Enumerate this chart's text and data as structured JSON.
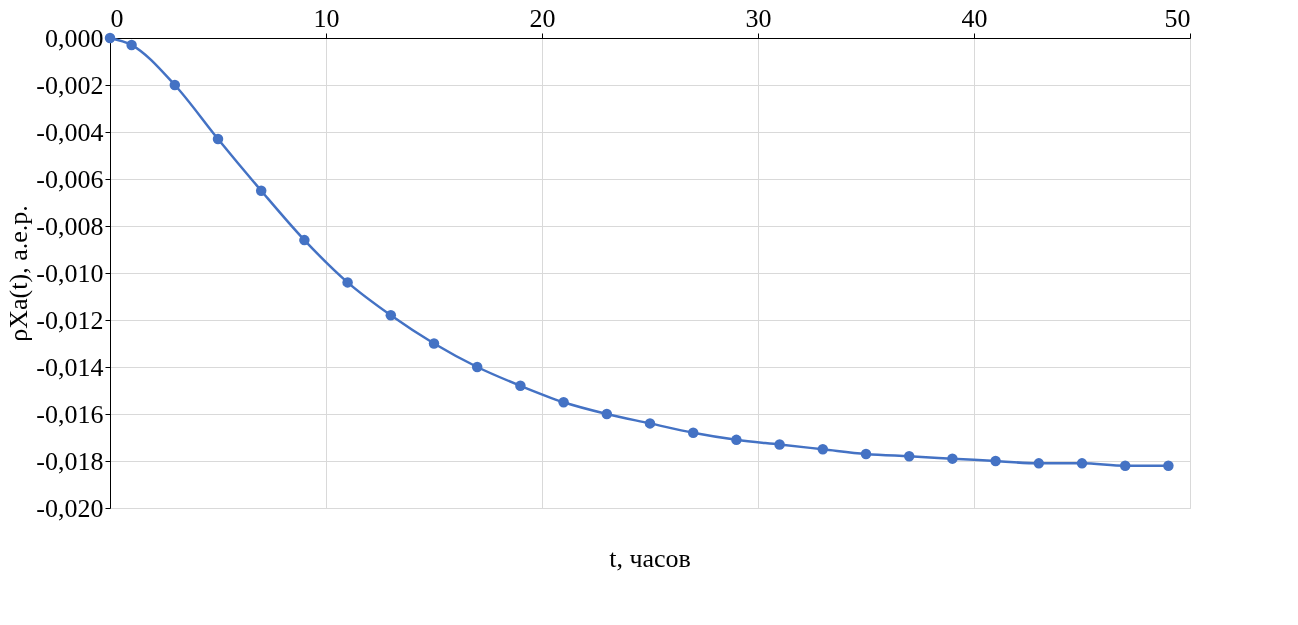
{
  "chart_data": {
    "type": "line",
    "xlabel": "t, часов",
    "ylabel": "ρXa(t), а.е.р.",
    "x": [
      0,
      1,
      3,
      5,
      7,
      9,
      11,
      13,
      15,
      17,
      19,
      21,
      23,
      25,
      27,
      29,
      31,
      33,
      35,
      37,
      39,
      41,
      43,
      45,
      47,
      49
    ],
    "series": [
      {
        "color": "#4472c4",
        "values": [
          0,
          -0.0003,
          -0.002,
          -0.0043,
          -0.0065,
          -0.0086,
          -0.0104,
          -0.0118,
          -0.013,
          -0.014,
          -0.0148,
          -0.0155,
          -0.016,
          -0.0164,
          -0.0168,
          -0.0171,
          -0.0173,
          -0.0175,
          -0.0177,
          -0.0178,
          -0.0179,
          -0.018,
          -0.0181,
          -0.0181,
          -0.0182,
          -0.0182
        ]
      }
    ],
    "xlim": [
      0,
      50
    ],
    "xticks": [
      0,
      10,
      20,
      30,
      40,
      50
    ],
    "ylim": [
      -0.02,
      0
    ],
    "yticks": [
      {
        "value": 0,
        "label": "0,000"
      },
      {
        "value": -0.002,
        "label": "-0,002"
      },
      {
        "value": -0.004,
        "label": "-0,004"
      },
      {
        "value": -0.006,
        "label": "-0,006"
      },
      {
        "value": -0.008,
        "label": "-0,008"
      },
      {
        "value": -0.01,
        "label": "-0,010"
      },
      {
        "value": -0.012,
        "label": "-0,012"
      },
      {
        "value": -0.014,
        "label": "-0,014"
      },
      {
        "value": -0.016,
        "label": "-0,016"
      },
      {
        "value": -0.018,
        "label": "-0,018"
      },
      {
        "value": -0.02,
        "label": "-0,020"
      }
    ],
    "grid": true,
    "marker": "circle",
    "line_style": "solid"
  }
}
